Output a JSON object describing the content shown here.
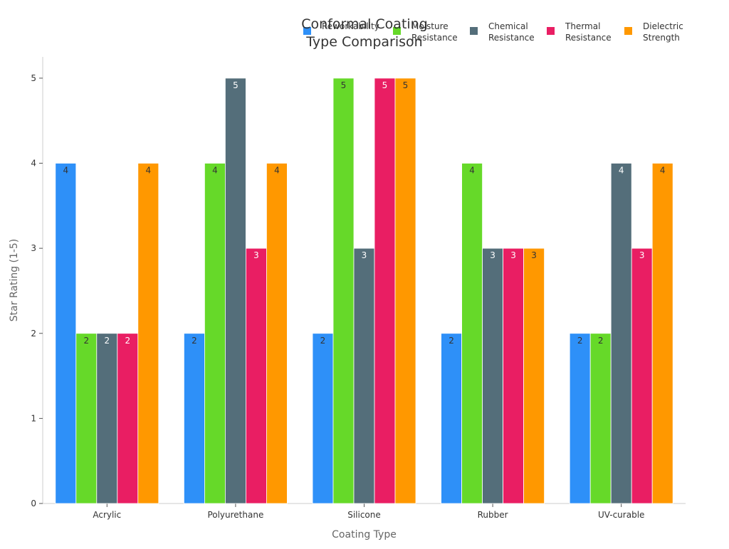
{
  "chart_data": {
    "type": "bar",
    "title_lines": [
      "Conformal Coating",
      "Type Comparison"
    ],
    "xlabel": "Coating Type",
    "ylabel": "Star Rating (1-5)",
    "ylim": [
      0,
      5.25
    ],
    "yticks": [
      0,
      1,
      2,
      3,
      4,
      5
    ],
    "grid": false,
    "legend_position": "top-right",
    "categories": [
      "Acrylic",
      "Polyurethane",
      "Silicone",
      "Rubber",
      "UV-curable"
    ],
    "series": [
      {
        "name": "Reworkability",
        "legend_lines": [
          "Reworkability"
        ],
        "color": "#2E90F8",
        "label_color": "#333333",
        "values": [
          4,
          2,
          2,
          2,
          2
        ]
      },
      {
        "name": "Moisture Resistance",
        "legend_lines": [
          "Moisture",
          "Resistance"
        ],
        "color": "#66D929",
        "label_color": "#333333",
        "values": [
          2,
          4,
          5,
          4,
          2
        ]
      },
      {
        "name": "Chemical Resistance",
        "legend_lines": [
          "Chemical",
          "Resistance"
        ],
        "color": "#546E7A",
        "label_color": "#ffffff",
        "values": [
          2,
          5,
          3,
          3,
          4
        ]
      },
      {
        "name": "Thermal Resistance",
        "legend_lines": [
          "Thermal",
          "Resistance"
        ],
        "color": "#E91E63",
        "label_color": "#ffffff",
        "values": [
          2,
          3,
          5,
          3,
          3
        ]
      },
      {
        "name": "Dielectric Strength",
        "legend_lines": [
          "Dielectric",
          "Strength"
        ],
        "color": "#FF9800",
        "label_color": "#333333",
        "values": [
          4,
          4,
          5,
          3,
          4
        ]
      }
    ]
  }
}
